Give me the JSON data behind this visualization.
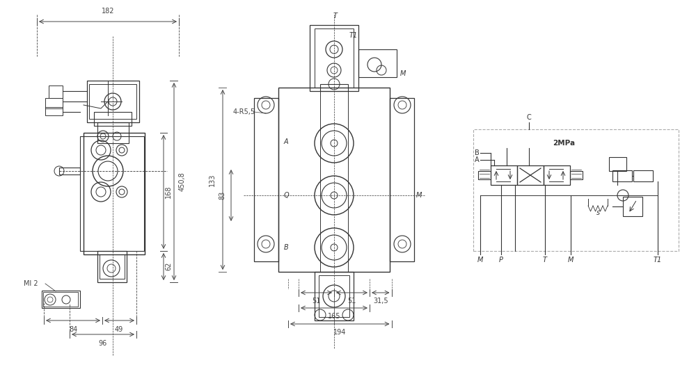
{
  "bg_color": "#ffffff",
  "line_color": "#333333",
  "dim_color": "#444444",
  "annotations": {
    "dim_182": "182",
    "dim_450_8": "450,8",
    "dim_168": "168",
    "dim_62": "62",
    "dim_84": "84",
    "dim_49": "49",
    "dim_96": "96",
    "dim_Ml2": "Ml 2",
    "dim_4R55": "4-R5,5",
    "dim_133": "133",
    "dim_83": "83",
    "dim_51a": "51",
    "dim_51b": "51",
    "dim_31_5": "31,5",
    "dim_165": "165",
    "dim_194": "194",
    "label_T": "T",
    "label_A": "A",
    "label_B": "B",
    "label_M": "M",
    "label_T1": "T1",
    "label_M2": "M",
    "label_C": "C",
    "label_2MPa": "2MPa",
    "label_M_bot": "M",
    "label_P": "P",
    "label_T_bot": "T",
    "label_M4": "M",
    "label_T1_bot": "T1"
  }
}
